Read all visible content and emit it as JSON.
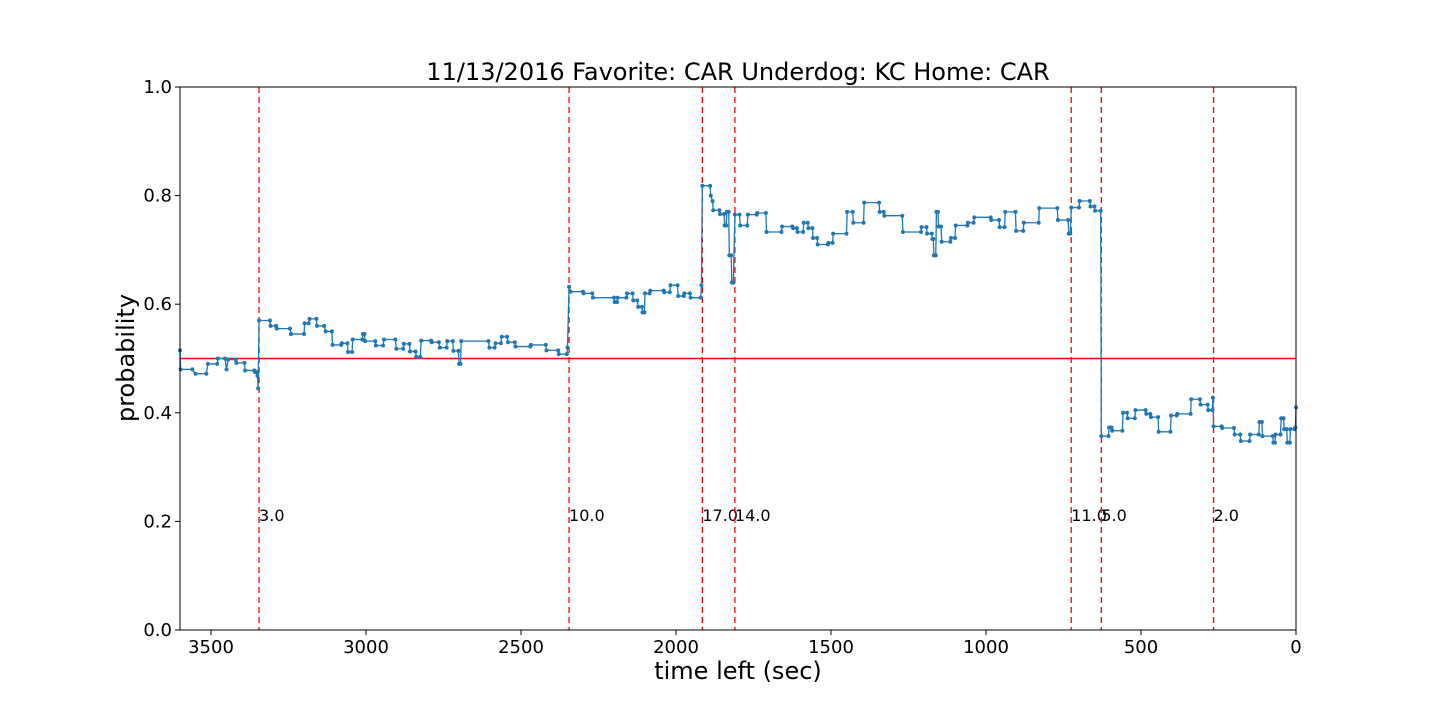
{
  "chart_data": {
    "type": "line",
    "title": "11/13/2016 Favorite: CAR Underdog: KC Home: CAR",
    "xlabel": "time left (sec)",
    "ylabel": "probability",
    "xlim": [
      3600,
      0
    ],
    "ylim": [
      0.0,
      1.0
    ],
    "x_ticks": [
      3500,
      3000,
      2500,
      2000,
      1500,
      1000,
      500,
      0
    ],
    "y_ticks": [
      0.0,
      0.2,
      0.4,
      0.6,
      0.8,
      1.0
    ],
    "x_tick_labels": [
      "3500",
      "3000",
      "2500",
      "2000",
      "1500",
      "1000",
      "500",
      "0"
    ],
    "y_tick_labels": [
      "0.0",
      "0.2",
      "0.4",
      "0.6",
      "0.8",
      "1.0"
    ],
    "grid": false,
    "reference_line": {
      "y": 0.5,
      "color": "#ff0000"
    },
    "line_color": "#1f77b4",
    "marker_color": "#1f77b4",
    "score_events": [
      {
        "time": 3345,
        "label": "3.0"
      },
      {
        "time": 2345,
        "label": "10.0"
      },
      {
        "time": 1915,
        "label": "17.0"
      },
      {
        "time": 1810,
        "label": "14.0"
      },
      {
        "time": 725,
        "label": "11.0"
      },
      {
        "time": 628,
        "label": "5.0"
      },
      {
        "time": 266,
        "label": "2.0"
      }
    ],
    "event_line_color": "#ff0000",
    "series": [
      {
        "values": [
          [
            3600,
            0.515
          ],
          [
            3598,
            0.48
          ],
          [
            3560,
            0.48
          ],
          [
            3550,
            0.472
          ],
          [
            3515,
            0.472
          ],
          [
            3510,
            0.49
          ],
          [
            3480,
            0.49
          ],
          [
            3478,
            0.5
          ],
          [
            3455,
            0.5
          ],
          [
            3450,
            0.48
          ],
          [
            3445,
            0.498
          ],
          [
            3420,
            0.498
          ],
          [
            3418,
            0.492
          ],
          [
            3392,
            0.492
          ],
          [
            3390,
            0.478
          ],
          [
            3360,
            0.478
          ],
          [
            3358,
            0.475
          ],
          [
            3352,
            0.475
          ],
          [
            3350,
            0.468
          ],
          [
            3348,
            0.445
          ],
          [
            3345,
            0.57
          ],
          [
            3310,
            0.57
          ],
          [
            3308,
            0.56
          ],
          [
            3290,
            0.56
          ],
          [
            3288,
            0.555
          ],
          [
            3245,
            0.555
          ],
          [
            3242,
            0.545
          ],
          [
            3200,
            0.545
          ],
          [
            3198,
            0.565
          ],
          [
            3185,
            0.565
          ],
          [
            3182,
            0.573
          ],
          [
            3160,
            0.573
          ],
          [
            3158,
            0.56
          ],
          [
            3135,
            0.56
          ],
          [
            3130,
            0.55
          ],
          [
            3110,
            0.55
          ],
          [
            3108,
            0.525
          ],
          [
            3080,
            0.525
          ],
          [
            3078,
            0.528
          ],
          [
            3060,
            0.528
          ],
          [
            3058,
            0.512
          ],
          [
            3045,
            0.512
          ],
          [
            3043,
            0.535
          ],
          [
            3012,
            0.535
          ],
          [
            3010,
            0.545
          ],
          [
            3005,
            0.545
          ],
          [
            3003,
            0.532
          ],
          [
            2970,
            0.532
          ],
          [
            2968,
            0.524
          ],
          [
            2945,
            0.524
          ],
          [
            2942,
            0.535
          ],
          [
            2905,
            0.535
          ],
          [
            2902,
            0.518
          ],
          [
            2880,
            0.518
          ],
          [
            2878,
            0.527
          ],
          [
            2860,
            0.527
          ],
          [
            2858,
            0.513
          ],
          [
            2840,
            0.513
          ],
          [
            2838,
            0.503
          ],
          [
            2825,
            0.503
          ],
          [
            2822,
            0.533
          ],
          [
            2790,
            0.533
          ],
          [
            2788,
            0.53
          ],
          [
            2765,
            0.53
          ],
          [
            2762,
            0.52
          ],
          [
            2740,
            0.52
          ],
          [
            2738,
            0.532
          ],
          [
            2720,
            0.532
          ],
          [
            2718,
            0.514
          ],
          [
            2702,
            0.514
          ],
          [
            2700,
            0.49
          ],
          [
            2695,
            0.49
          ],
          [
            2693,
            0.532
          ],
          [
            2605,
            0.532
          ],
          [
            2602,
            0.52
          ],
          [
            2585,
            0.52
          ],
          [
            2582,
            0.528
          ],
          [
            2565,
            0.528
          ],
          [
            2562,
            0.54
          ],
          [
            2545,
            0.54
          ],
          [
            2542,
            0.53
          ],
          [
            2520,
            0.53
          ],
          [
            2518,
            0.522
          ],
          [
            2470,
            0.522
          ],
          [
            2468,
            0.525
          ],
          [
            2420,
            0.525
          ],
          [
            2418,
            0.515
          ],
          [
            2380,
            0.515
          ],
          [
            2378,
            0.508
          ],
          [
            2352,
            0.508
          ],
          [
            2350,
            0.52
          ],
          [
            2345,
            0.632
          ],
          [
            2340,
            0.623
          ],
          [
            2300,
            0.623
          ],
          [
            2298,
            0.62
          ],
          [
            2270,
            0.62
          ],
          [
            2268,
            0.612
          ],
          [
            2200,
            0.612
          ],
          [
            2198,
            0.604
          ],
          [
            2190,
            0.604
          ],
          [
            2188,
            0.612
          ],
          [
            2160,
            0.612
          ],
          [
            2158,
            0.62
          ],
          [
            2140,
            0.62
          ],
          [
            2138,
            0.607
          ],
          [
            2125,
            0.607
          ],
          [
            2122,
            0.595
          ],
          [
            2110,
            0.595
          ],
          [
            2108,
            0.585
          ],
          [
            2102,
            0.585
          ],
          [
            2100,
            0.62
          ],
          [
            2085,
            0.62
          ],
          [
            2083,
            0.625
          ],
          [
            2040,
            0.625
          ],
          [
            2038,
            0.622
          ],
          [
            2020,
            0.622
          ],
          [
            2018,
            0.635
          ],
          [
            1995,
            0.635
          ],
          [
            1993,
            0.615
          ],
          [
            1975,
            0.615
          ],
          [
            1973,
            0.62
          ],
          [
            1955,
            0.62
          ],
          [
            1953,
            0.612
          ],
          [
            1920,
            0.612
          ],
          [
            1918,
            0.635
          ],
          [
            1915,
            0.818
          ],
          [
            1890,
            0.818
          ],
          [
            1888,
            0.8
          ],
          [
            1882,
            0.79
          ],
          [
            1880,
            0.773
          ],
          [
            1860,
            0.773
          ],
          [
            1858,
            0.766
          ],
          [
            1845,
            0.766
          ],
          [
            1843,
            0.745
          ],
          [
            1838,
            0.745
          ],
          [
            1836,
            0.77
          ],
          [
            1830,
            0.77
          ],
          [
            1828,
            0.69
          ],
          [
            1822,
            0.69
          ],
          [
            1820,
            0.64
          ],
          [
            1815,
            0.64
          ],
          [
            1810,
            0.765
          ],
          [
            1795,
            0.765
          ],
          [
            1793,
            0.745
          ],
          [
            1770,
            0.745
          ],
          [
            1768,
            0.765
          ],
          [
            1740,
            0.765
          ],
          [
            1738,
            0.768
          ],
          [
            1710,
            0.768
          ],
          [
            1708,
            0.733
          ],
          [
            1660,
            0.733
          ],
          [
            1658,
            0.743
          ],
          [
            1625,
            0.743
          ],
          [
            1622,
            0.74
          ],
          [
            1610,
            0.74
          ],
          [
            1608,
            0.733
          ],
          [
            1590,
            0.733
          ],
          [
            1588,
            0.75
          ],
          [
            1575,
            0.75
          ],
          [
            1573,
            0.74
          ],
          [
            1560,
            0.74
          ],
          [
            1558,
            0.722
          ],
          [
            1545,
            0.722
          ],
          [
            1543,
            0.71
          ],
          [
            1510,
            0.71
          ],
          [
            1508,
            0.713
          ],
          [
            1495,
            0.713
          ],
          [
            1493,
            0.73
          ],
          [
            1450,
            0.73
          ],
          [
            1448,
            0.77
          ],
          [
            1430,
            0.77
          ],
          [
            1428,
            0.75
          ],
          [
            1395,
            0.75
          ],
          [
            1393,
            0.787
          ],
          [
            1345,
            0.787
          ],
          [
            1343,
            0.77
          ],
          [
            1330,
            0.77
          ],
          [
            1328,
            0.763
          ],
          [
            1270,
            0.763
          ],
          [
            1268,
            0.733
          ],
          [
            1210,
            0.733
          ],
          [
            1208,
            0.742
          ],
          [
            1192,
            0.742
          ],
          [
            1190,
            0.73
          ],
          [
            1175,
            0.73
          ],
          [
            1173,
            0.72
          ],
          [
            1170,
            0.72
          ],
          [
            1168,
            0.69
          ],
          [
            1162,
            0.69
          ],
          [
            1160,
            0.77
          ],
          [
            1155,
            0.77
          ],
          [
            1153,
            0.743
          ],
          [
            1145,
            0.743
          ],
          [
            1143,
            0.715
          ],
          [
            1115,
            0.715
          ],
          [
            1113,
            0.722
          ],
          [
            1100,
            0.722
          ],
          [
            1098,
            0.745
          ],
          [
            1060,
            0.745
          ],
          [
            1058,
            0.75
          ],
          [
            1040,
            0.75
          ],
          [
            1038,
            0.76
          ],
          [
            985,
            0.76
          ],
          [
            983,
            0.755
          ],
          [
            958,
            0.755
          ],
          [
            956,
            0.742
          ],
          [
            940,
            0.742
          ],
          [
            938,
            0.77
          ],
          [
            905,
            0.77
          ],
          [
            903,
            0.735
          ],
          [
            880,
            0.735
          ],
          [
            878,
            0.75
          ],
          [
            830,
            0.75
          ],
          [
            828,
            0.777
          ],
          [
            770,
            0.777
          ],
          [
            768,
            0.755
          ],
          [
            735,
            0.755
          ],
          [
            733,
            0.73
          ],
          [
            728,
            0.73
          ],
          [
            725,
            0.778
          ],
          [
            700,
            0.778
          ],
          [
            698,
            0.79
          ],
          [
            665,
            0.79
          ],
          [
            663,
            0.78
          ],
          [
            650,
            0.78
          ],
          [
            648,
            0.772
          ],
          [
            630,
            0.772
          ],
          [
            628,
            0.357
          ],
          [
            605,
            0.357
          ],
          [
            603,
            0.373
          ],
          [
            595,
            0.373
          ],
          [
            593,
            0.367
          ],
          [
            560,
            0.367
          ],
          [
            558,
            0.4
          ],
          [
            545,
            0.4
          ],
          [
            543,
            0.39
          ],
          [
            520,
            0.39
          ],
          [
            518,
            0.405
          ],
          [
            485,
            0.405
          ],
          [
            483,
            0.398
          ],
          [
            470,
            0.398
          ],
          [
            468,
            0.392
          ],
          [
            445,
            0.392
          ],
          [
            443,
            0.365
          ],
          [
            405,
            0.365
          ],
          [
            403,
            0.395
          ],
          [
            385,
            0.395
          ],
          [
            383,
            0.398
          ],
          [
            340,
            0.398
          ],
          [
            338,
            0.425
          ],
          [
            310,
            0.425
          ],
          [
            308,
            0.415
          ],
          [
            285,
            0.415
          ],
          [
            283,
            0.405
          ],
          [
            270,
            0.405
          ],
          [
            268,
            0.428
          ],
          [
            266,
            0.375
          ],
          [
            240,
            0.375
          ],
          [
            238,
            0.372
          ],
          [
            200,
            0.372
          ],
          [
            198,
            0.36
          ],
          [
            180,
            0.36
          ],
          [
            178,
            0.348
          ],
          [
            150,
            0.348
          ],
          [
            148,
            0.36
          ],
          [
            120,
            0.36
          ],
          [
            118,
            0.383
          ],
          [
            110,
            0.383
          ],
          [
            108,
            0.357
          ],
          [
            75,
            0.357
          ],
          [
            73,
            0.345
          ],
          [
            68,
            0.345
          ],
          [
            66,
            0.36
          ],
          [
            50,
            0.36
          ],
          [
            48,
            0.39
          ],
          [
            40,
            0.39
          ],
          [
            38,
            0.37
          ],
          [
            30,
            0.37
          ],
          [
            28,
            0.345
          ],
          [
            20,
            0.345
          ],
          [
            18,
            0.37
          ],
          [
            5,
            0.37
          ],
          [
            2,
            0.373
          ],
          [
            0,
            0.41
          ]
        ]
      }
    ]
  }
}
